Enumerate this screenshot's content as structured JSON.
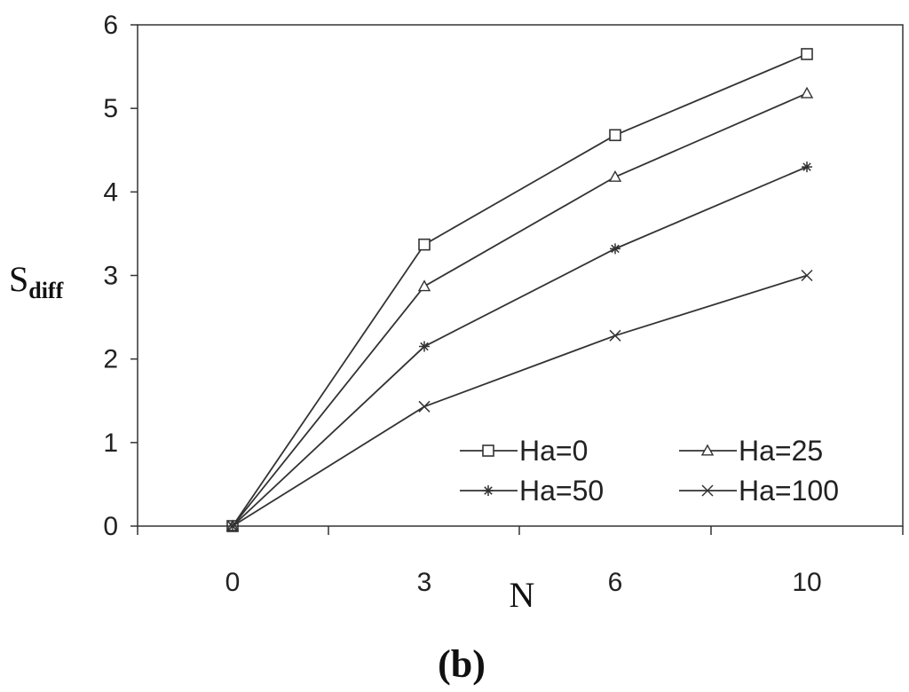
{
  "chart_data": {
    "type": "line",
    "x": [
      0,
      3,
      6,
      10
    ],
    "xticks": [
      "0",
      "3",
      "6",
      "10"
    ],
    "xlabel": "N",
    "ylabel_main": "S",
    "ylabel_sub": "diff",
    "ylim": [
      0,
      6
    ],
    "yticks": [
      0,
      1,
      2,
      3,
      4,
      5,
      6
    ],
    "grid": false,
    "legend_position": "bottom-right inside",
    "series": [
      {
        "name": "Ha=0",
        "marker": "square",
        "values": [
          0,
          3.37,
          4.68,
          5.65
        ]
      },
      {
        "name": "Ha=25",
        "marker": "triangle",
        "values": [
          0,
          2.87,
          4.18,
          5.18
        ]
      },
      {
        "name": "Ha=50",
        "marker": "star",
        "values": [
          0,
          2.15,
          3.32,
          4.3
        ]
      },
      {
        "name": "Ha=100",
        "marker": "x",
        "values": [
          0,
          1.43,
          2.28,
          3.0
        ]
      }
    ],
    "panel_label": "(b)"
  }
}
